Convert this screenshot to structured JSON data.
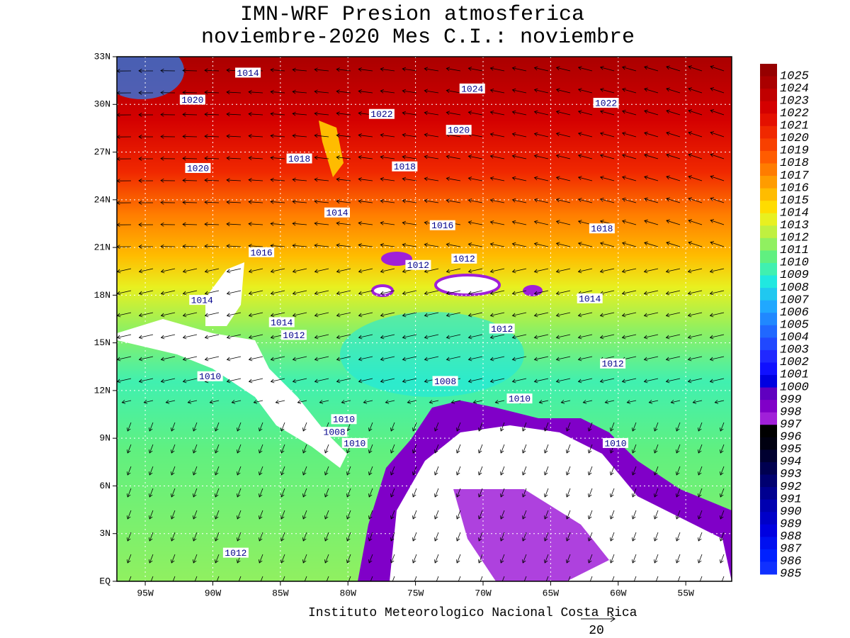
{
  "map": {
    "title": [
      "IMN-WRF  Presion atmosferica",
      "noviembre-2020 Mes C.I.: noviembre"
    ],
    "footer": "Instituto Meteorologico Nacional Costa Rica",
    "vector_reference": 20,
    "xlim": [
      -97.1,
      -51.6
    ],
    "ylim": [
      0,
      33
    ],
    "xticks": [
      {
        "value": -95,
        "label": "95W"
      },
      {
        "value": -90,
        "label": "90W"
      },
      {
        "value": -85,
        "label": "85W"
      },
      {
        "value": -80,
        "label": "80W"
      },
      {
        "value": -75,
        "label": "75W"
      },
      {
        "value": -70,
        "label": "70W"
      },
      {
        "value": -65,
        "label": "65W"
      },
      {
        "value": -60,
        "label": "60W"
      },
      {
        "value": -55,
        "label": "55W"
      }
    ],
    "yticks": [
      {
        "value": 0,
        "label": "EQ"
      },
      {
        "value": 3,
        "label": "3N"
      },
      {
        "value": 6,
        "label": "6N"
      },
      {
        "value": 9,
        "label": "9N"
      },
      {
        "value": 12,
        "label": "12N"
      },
      {
        "value": 15,
        "label": "15N"
      },
      {
        "value": 18,
        "label": "18N"
      },
      {
        "value": 21,
        "label": "21N"
      },
      {
        "value": 24,
        "label": "24N"
      },
      {
        "value": 27,
        "label": "27N"
      },
      {
        "value": 30,
        "label": "30N"
      },
      {
        "value": 33,
        "label": "33N"
      }
    ],
    "colorbar": {
      "levels": [
        1025,
        1024,
        1023,
        1022,
        1021,
        1020,
        1019,
        1018,
        1017,
        1016,
        1015,
        1014,
        1013,
        1012,
        1011,
        1010,
        1009,
        1008,
        1007,
        1006,
        1005,
        1004,
        1003,
        1002,
        1001,
        1000,
        999,
        998,
        997,
        996,
        995,
        994,
        993,
        992,
        991,
        990,
        989,
        988,
        987,
        986,
        985
      ],
      "colors": [
        "#960000",
        "#aa0000",
        "#c00000",
        "#d40000",
        "#e41000",
        "#f02800",
        "#f84000",
        "#ff5c00",
        "#ff7c00",
        "#ff9c00",
        "#ffbc00",
        "#ffdc00",
        "#e8f020",
        "#c0f040",
        "#90f060",
        "#60f080",
        "#40f0b0",
        "#20e8e0",
        "#20c8f0",
        "#20a8ff",
        "#2088ff",
        "#2068ff",
        "#2048ff",
        "#2028ff",
        "#1010ff",
        "#0000e0",
        "#6000c0",
        "#8000c8",
        "#a020d8",
        "#000000",
        "#000010",
        "#000030",
        "#000050",
        "#000070",
        "#000090",
        "#0000b0",
        "#0000c8",
        "#0000e0",
        "#0010f0",
        "#0020ff",
        "#1030ff"
      ]
    },
    "contour_labels": [
      {
        "text": "1014",
        "lon": -87.4,
        "lat": 32.0
      },
      {
        "text": "1020",
        "lon": -91.5,
        "lat": 30.3
      },
      {
        "text": "1022",
        "lon": -77.5,
        "lat": 29.4
      },
      {
        "text": "1024",
        "lon": -70.8,
        "lat": 31.0
      },
      {
        "text": "1022",
        "lon": -60.9,
        "lat": 30.1
      },
      {
        "text": "1020",
        "lon": -71.8,
        "lat": 28.4
      },
      {
        "text": "1020",
        "lon": -91.1,
        "lat": 26.0
      },
      {
        "text": "1018",
        "lon": -83.6,
        "lat": 26.6
      },
      {
        "text": "1018",
        "lon": -75.8,
        "lat": 26.1
      },
      {
        "text": "1014",
        "lon": -80.8,
        "lat": 23.2
      },
      {
        "text": "1016",
        "lon": -73.0,
        "lat": 22.4
      },
      {
        "text": "1018",
        "lon": -61.2,
        "lat": 22.2
      },
      {
        "text": "1016",
        "lon": -86.4,
        "lat": 20.7
      },
      {
        "text": "1012",
        "lon": -74.8,
        "lat": 19.9
      },
      {
        "text": "1012",
        "lon": -71.4,
        "lat": 20.3
      },
      {
        "text": "1014",
        "lon": -90.8,
        "lat": 17.7
      },
      {
        "text": "1014",
        "lon": -84.9,
        "lat": 16.3
      },
      {
        "text": "1012",
        "lon": -84.0,
        "lat": 15.5
      },
      {
        "text": "1012",
        "lon": -68.6,
        "lat": 15.9
      },
      {
        "text": "1014",
        "lon": -62.1,
        "lat": 17.8
      },
      {
        "text": "1012",
        "lon": -60.4,
        "lat": 13.7
      },
      {
        "text": "1008",
        "lon": -72.8,
        "lat": 12.6
      },
      {
        "text": "1010",
        "lon": -67.3,
        "lat": 11.5
      },
      {
        "text": "1010",
        "lon": -80.3,
        "lat": 10.2
      },
      {
        "text": "1008",
        "lon": -81.0,
        "lat": 9.4
      },
      {
        "text": "1010",
        "lon": -79.5,
        "lat": 8.7
      },
      {
        "text": "1010",
        "lon": -60.2,
        "lat": 8.7
      },
      {
        "text": "1010",
        "lon": -90.2,
        "lat": 12.9
      },
      {
        "text": "1012",
        "lon": -88.3,
        "lat": 1.8
      }
    ]
  }
}
